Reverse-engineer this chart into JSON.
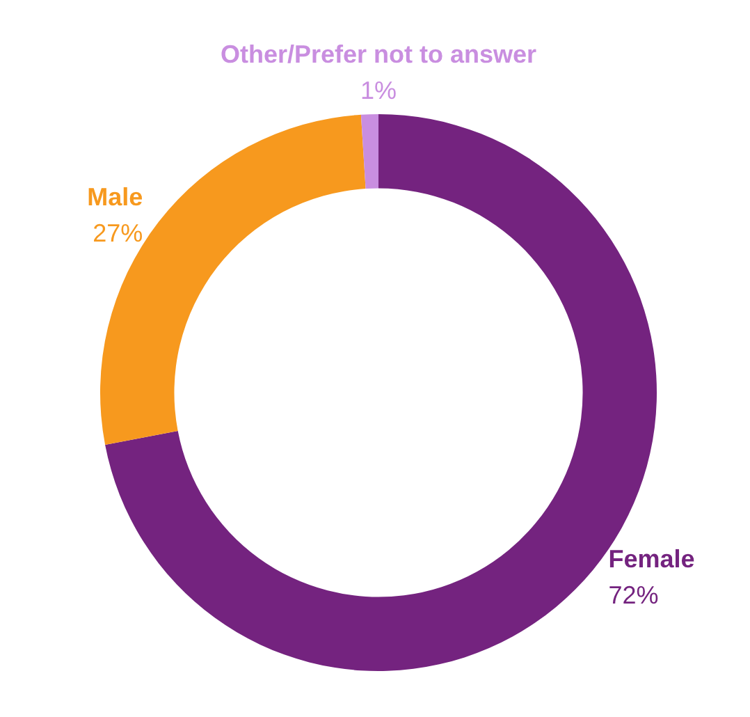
{
  "chart_data": {
    "type": "donut",
    "categories": [
      "Female",
      "Male",
      "Other/Prefer not to answer"
    ],
    "values": [
      72,
      27,
      1
    ],
    "value_labels": [
      "72%",
      "27%",
      "1%"
    ],
    "colors": [
      "#74237f",
      "#f7991e",
      "#c98ee0"
    ],
    "legend": false
  }
}
